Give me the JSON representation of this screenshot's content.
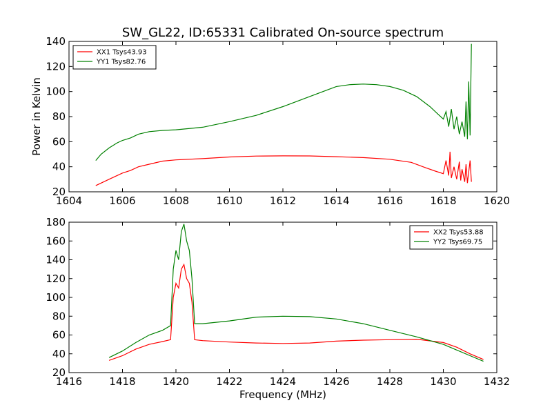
{
  "chart_data": [
    {
      "type": "line",
      "title": "SW_GL22, ID:65331 Calibrated On-source spectrum",
      "xlabel": "",
      "ylabel": "Power in Kelvin",
      "xlim": [
        1604,
        1620
      ],
      "ylim": [
        20,
        140
      ],
      "xticks": [
        "1604",
        "1606",
        "1608",
        "1610",
        "1612",
        "1614",
        "1616",
        "1618",
        "1620"
      ],
      "yticks": [
        "20",
        "40",
        "60",
        "80",
        "100",
        "120",
        "140"
      ],
      "legend_position": "top-left",
      "series": [
        {
          "name": "XX1 Tsys43.93",
          "color": "#ff0000",
          "x": [
            1605.0,
            1605.2,
            1605.5,
            1605.8,
            1606.0,
            1606.3,
            1606.6,
            1607.0,
            1607.5,
            1608.0,
            1609.0,
            1610.0,
            1611.0,
            1612.0,
            1613.0,
            1614.0,
            1615.0,
            1616.0,
            1616.8,
            1617.3,
            1617.7,
            1618.0,
            1618.1,
            1618.2,
            1618.25,
            1618.3,
            1618.4,
            1618.5,
            1618.6,
            1618.65,
            1618.7,
            1618.8,
            1618.85,
            1618.9,
            1619.0,
            1619.05
          ],
          "values": [
            25,
            27,
            30,
            33,
            35,
            37,
            40,
            42,
            44.5,
            45.5,
            46.5,
            47.8,
            48.5,
            48.7,
            48.6,
            48.0,
            47.3,
            46.0,
            43.5,
            39.5,
            36.5,
            34.5,
            45,
            33,
            52,
            31,
            40,
            30,
            44,
            29,
            38,
            28,
            42,
            27,
            45,
            28
          ]
        },
        {
          "name": "YY1 Tsys82.76",
          "color": "#008000",
          "x": [
            1605.0,
            1605.2,
            1605.5,
            1605.8,
            1606.0,
            1606.3,
            1606.6,
            1607.0,
            1607.5,
            1608.0,
            1609.0,
            1610.0,
            1611.0,
            1612.0,
            1613.0,
            1613.5,
            1614.0,
            1614.5,
            1615.0,
            1615.5,
            1616.0,
            1616.5,
            1617.0,
            1617.5,
            1617.8,
            1618.0,
            1618.1,
            1618.2,
            1618.3,
            1618.4,
            1618.5,
            1618.6,
            1618.7,
            1618.8,
            1618.85,
            1618.9,
            1618.95,
            1619.0,
            1619.05
          ],
          "values": [
            45,
            50,
            55,
            59,
            61,
            63,
            66,
            68,
            69,
            69.5,
            71.5,
            76,
            81,
            88,
            96,
            100,
            104,
            105.5,
            106,
            105.5,
            104,
            101,
            96,
            88,
            82,
            78,
            84,
            72,
            86,
            70,
            80,
            66,
            76,
            64,
            92,
            62,
            108,
            65,
            138
          ]
        }
      ]
    },
    {
      "type": "line",
      "title": "",
      "xlabel": "Frequency (MHz)",
      "ylabel": "",
      "xlim": [
        1416,
        1432
      ],
      "ylim": [
        20,
        180
      ],
      "xticks": [
        "1416",
        "1418",
        "1420",
        "1422",
        "1424",
        "1426",
        "1428",
        "1430",
        "1432"
      ],
      "yticks": [
        "20",
        "40",
        "60",
        "80",
        "100",
        "120",
        "140",
        "160",
        "180"
      ],
      "legend_position": "top-right",
      "series": [
        {
          "name": "XX2 Tsys53.88",
          "color": "#ff0000",
          "x": [
            1417.5,
            1418.0,
            1418.5,
            1419.0,
            1419.5,
            1419.8,
            1419.9,
            1420.0,
            1420.1,
            1420.2,
            1420.3,
            1420.4,
            1420.5,
            1420.6,
            1420.7,
            1421.0,
            1422.0,
            1423.0,
            1424.0,
            1425.0,
            1426.0,
            1427.0,
            1428.0,
            1429.0,
            1430.0,
            1430.5,
            1431.0,
            1431.5
          ],
          "values": [
            33,
            38,
            45,
            50,
            53,
            55,
            100,
            115,
            110,
            130,
            135,
            120,
            115,
            95,
            55,
            54,
            52.5,
            51.5,
            51,
            51.5,
            53.5,
            54.5,
            55,
            55.5,
            52,
            47,
            40,
            34
          ]
        },
        {
          "name": "YY2 Tsys69.75",
          "color": "#008000",
          "x": [
            1417.5,
            1418.0,
            1418.5,
            1419.0,
            1419.5,
            1419.8,
            1419.9,
            1420.0,
            1420.1,
            1420.2,
            1420.3,
            1420.4,
            1420.5,
            1420.6,
            1420.7,
            1421.0,
            1422.0,
            1423.0,
            1424.0,
            1425.0,
            1426.0,
            1427.0,
            1428.0,
            1429.0,
            1430.0,
            1430.5,
            1431.0,
            1431.5
          ],
          "values": [
            36,
            43,
            52,
            60,
            65,
            70,
            130,
            150,
            140,
            170,
            178,
            160,
            150,
            120,
            72,
            72,
            75,
            79,
            80,
            79.5,
            77,
            72,
            65,
            58,
            50,
            44,
            38,
            32
          ]
        }
      ]
    }
  ]
}
